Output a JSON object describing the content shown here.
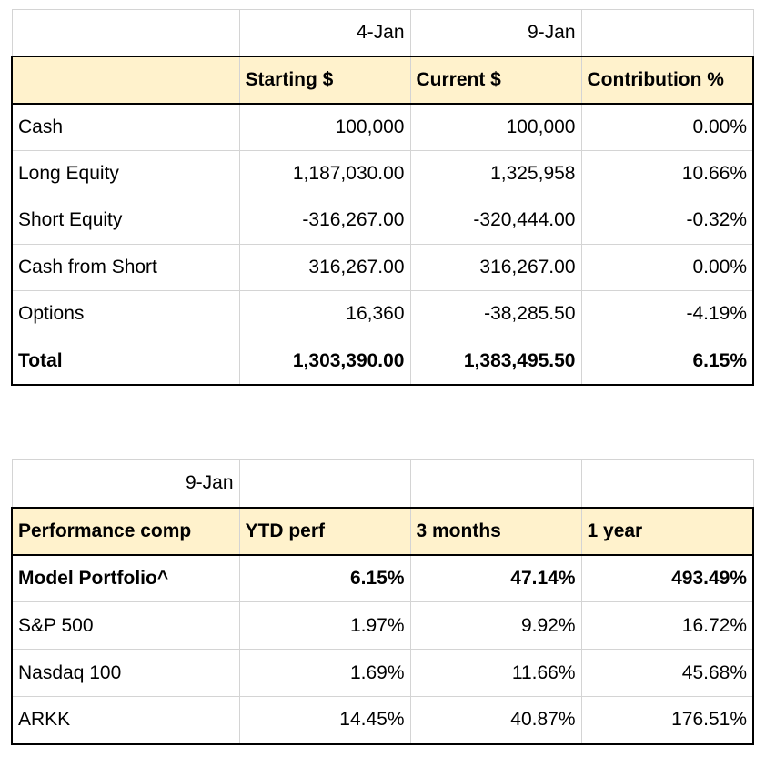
{
  "portfolio": {
    "date_row": [
      "",
      "4-Jan",
      "9-Jan",
      ""
    ],
    "headers": [
      "",
      "Starting $",
      "Current $",
      "Contribution %"
    ],
    "rows": [
      {
        "label": "Cash",
        "starting": "100,000",
        "current": "100,000",
        "contribution": "0.00%"
      },
      {
        "label": "Long Equity",
        "starting": "1,187,030.00",
        "current": "1,325,958",
        "contribution": "10.66%"
      },
      {
        "label": "Short Equity",
        "starting": "-316,267.00",
        "current": "-320,444.00",
        "contribution": "-0.32%"
      },
      {
        "label": "Cash from Short",
        "starting": "316,267.00",
        "current": "316,267.00",
        "contribution": "0.00%"
      },
      {
        "label": "Options",
        "starting": "16,360",
        "current": "-38,285.50",
        "contribution": "-4.19%"
      }
    ],
    "total": {
      "label": "Total",
      "starting": "1,303,390.00",
      "current": "1,383,495.50",
      "contribution": "6.15%"
    }
  },
  "performance": {
    "date_label": "9-Jan",
    "headers": [
      "Performance comp",
      "YTD perf",
      "3 months",
      "1 year"
    ],
    "rows": [
      {
        "label": "Model Portfolio^",
        "ytd": "6.15%",
        "three_months": "47.14%",
        "one_year": "493.49%",
        "bold": true
      },
      {
        "label": "S&P 500",
        "ytd": "1.97%",
        "three_months": "9.92%",
        "one_year": "16.72%"
      },
      {
        "label": "Nasdaq 100",
        "ytd": "1.69%",
        "three_months": "11.66%",
        "one_year": "45.68%"
      },
      {
        "label": "ARKK",
        "ytd": "14.45%",
        "three_months": "40.87%",
        "one_year": "176.51%"
      }
    ]
  }
}
